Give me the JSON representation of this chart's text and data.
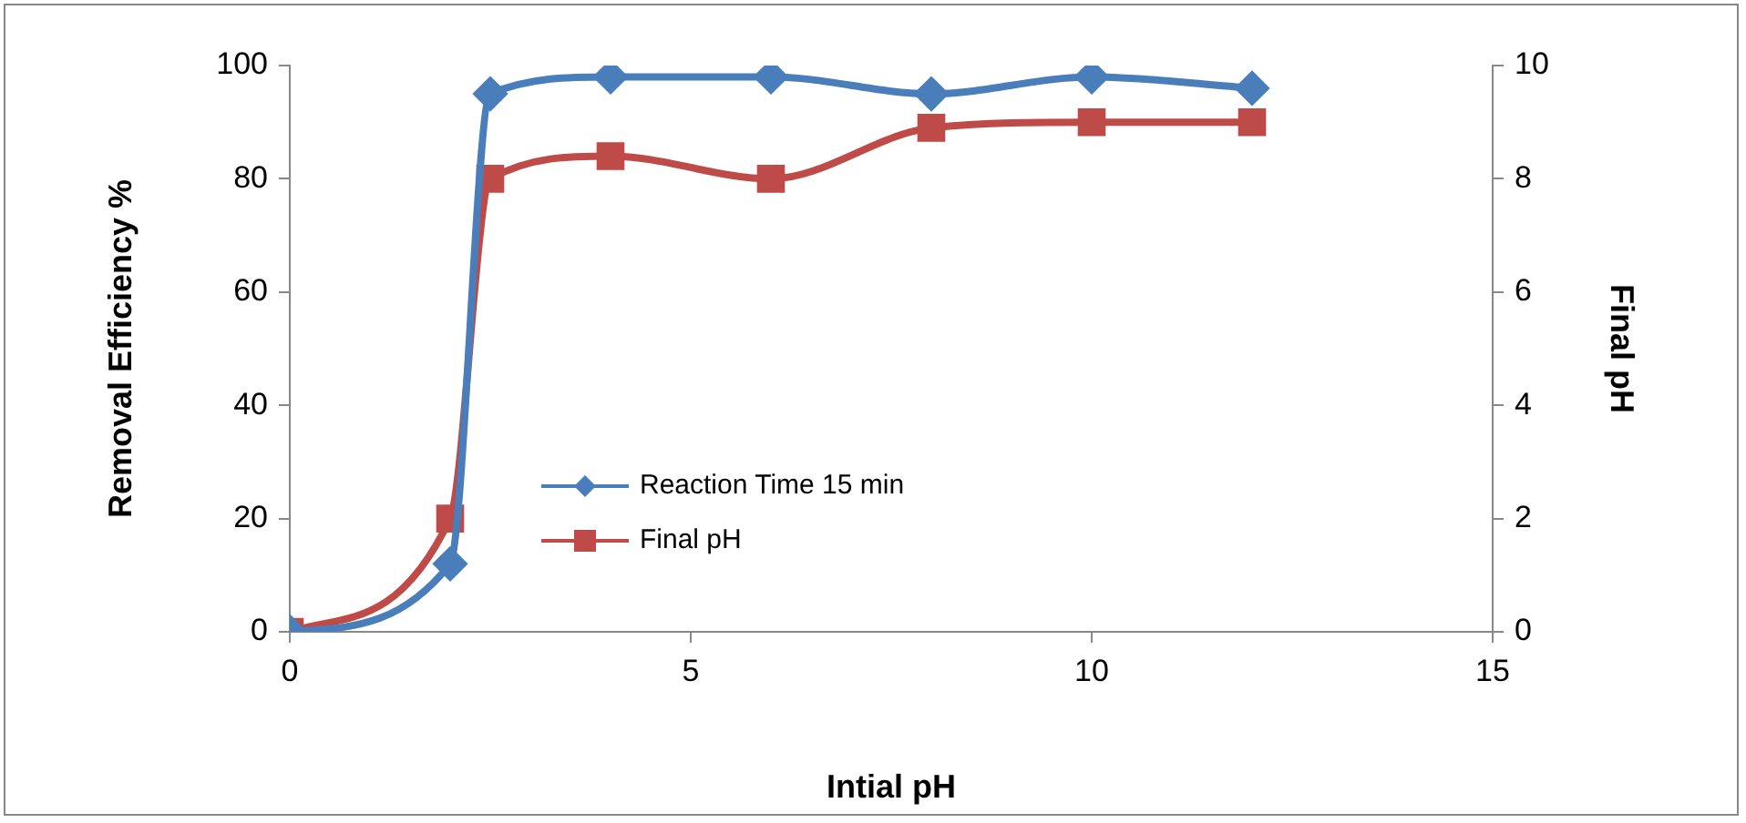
{
  "chart_data": {
    "type": "line",
    "xlabel": "Intial pH",
    "ylabel": "Removal Efficiency %",
    "y2label": "Final pH",
    "xlim": [
      0,
      15
    ],
    "xticks": [
      0,
      5,
      10,
      15
    ],
    "ylim": [
      0,
      100
    ],
    "yticks": [
      0,
      20,
      40,
      60,
      80,
      100
    ],
    "y2lim": [
      0,
      10
    ],
    "y2ticks": [
      0,
      2,
      4,
      6,
      8,
      10
    ],
    "grid": false,
    "legend": "bottom",
    "line_style": "solid",
    "x": [
      0,
      2,
      2.5,
      4,
      6,
      8,
      10,
      12
    ],
    "series": [
      {
        "name": "Reaction Time 15 min",
        "color": "#4a7ebb",
        "marker": "diamond",
        "values": [
          0,
          12,
          95,
          98,
          98,
          95,
          98,
          96
        ]
      },
      {
        "name": "Final pH",
        "color": "#be4b48",
        "marker": "square",
        "axis": "y2",
        "values": [
          0,
          2,
          8,
          8.4,
          8,
          8.9,
          9,
          9
        ]
      }
    ]
  }
}
